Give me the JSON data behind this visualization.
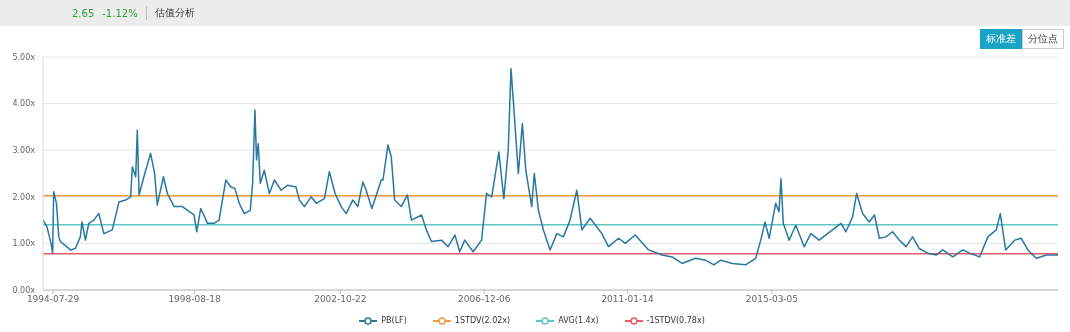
{
  "chart_data": {
    "type": "line",
    "title": "估值分析",
    "annotations": [
      "2.65",
      "-1.12%",
      "标准差",
      "分位点"
    ],
    "x": [
      "1994-04-15",
      "1994-05-26",
      "1994-07-08",
      "1994-07-25",
      "1994-08-05",
      "1994-09-03",
      "1994-09-27",
      "1994-10-14",
      "1995-01-28",
      "1995-03-19",
      "1995-05-11",
      "1995-05-28",
      "1995-07-03",
      "1995-08-07",
      "1995-09-29",
      "1995-11-20",
      "1996-01-12",
      "1996-04-09",
      "1996-06-18",
      "1996-08-27",
      "1996-10-18",
      "1996-11-05",
      "1996-12-10",
      "1996-12-27",
      "1997-01-14",
      "1997-03-06",
      "1997-05-15",
      "1997-06-26",
      "1997-07-24",
      "1997-09-26",
      "1997-11-07",
      "1998-01-16",
      "1998-04-12",
      "1998-08-13",
      "1998-09-10",
      "1998-10-22",
      "1999-01-01",
      "1999-03-10",
      "1999-05-02",
      "1999-07-11",
      "1999-09-03",
      "1999-10-14",
      "1999-11-29",
      "2000-01-21",
      "2000-03-23",
      "2000-04-17",
      "2000-05-11",
      "2000-05-28",
      "2000-06-15",
      "2000-07-06",
      "2000-08-17",
      "2000-10-09",
      "2000-12-01",
      "2001-02-10",
      "2001-04-19",
      "2001-07-15",
      "2001-08-19",
      "2001-10-11",
      "2001-12-20",
      "2002-02-12",
      "2002-05-08",
      "2002-06-29",
      "2002-08-28",
      "2002-10-30",
      "2002-12-22",
      "2003-03-01",
      "2003-04-23",
      "2003-06-14",
      "2003-07-19",
      "2003-09-17",
      "2003-11-19",
      "2003-12-24",
      "2004-01-11",
      "2004-03-03",
      "2004-04-07",
      "2004-05-12",
      "2004-07-21",
      "2004-09-23",
      "2004-11-04",
      "2005-02-18",
      "2005-04-09",
      "2005-06-01",
      "2005-09-15",
      "2005-11-23",
      "2006-02-02",
      "2006-03-24",
      "2006-05-16",
      "2006-08-12",
      "2006-11-08",
      "2006-12-30",
      "2007-02-22",
      "2007-05-08",
      "2007-06-29",
      "2007-08-14",
      "2007-09-12",
      "2007-10-06",
      "2007-11-28",
      "2008-01-09",
      "2008-02-14",
      "2008-04-16",
      "2008-05-13",
      "2008-06-25",
      "2008-08-16",
      "2008-10-25",
      "2009-01-04",
      "2009-03-13",
      "2009-05-22",
      "2009-08-01",
      "2009-09-23",
      "2009-12-19",
      "2010-04-20",
      "2010-06-28",
      "2010-10-12",
      "2010-12-21",
      "2011-04-04",
      "2011-08-22",
      "2012-01-10",
      "2012-04-24",
      "2012-08-07",
      "2012-12-25",
      "2013-04-09",
      "2013-07-05",
      "2013-09-14",
      "2014-01-15",
      "2014-06-02",
      "2014-09-16",
      "2014-11-08",
      "2014-12-23",
      "2015-02-04",
      "2015-04-13",
      "2015-05-18",
      "2015-06-08",
      "2015-07-02",
      "2015-09-01",
      "2015-11-10",
      "2016-02-06",
      "2016-04-15",
      "2016-07-11",
      "2016-10-07",
      "2017-02-25",
      "2017-04-17",
      "2017-06-26",
      "2017-08-07",
      "2017-10-09",
      "2017-12-18",
      "2018-02-10",
      "2018-04-02",
      "2018-06-10",
      "2018-08-19",
      "2018-10-28",
      "2019-01-07",
      "2019-03-16",
      "2019-05-25",
      "2019-08-21",
      "2019-11-17",
      "2020-01-26",
      "2020-05-10",
      "2020-08-23",
      "2020-11-02",
      "2021-02-15",
      "2021-05-12",
      "2021-08-08",
      "2021-09-19",
      "2021-11-14",
      "2022-02-17",
      "2022-04-26",
      "2022-07-05",
      "2022-10-01",
      "2023-01-15",
      "2023-05-16"
    ],
    "series": [
      {
        "name": "PB(LF)",
        "color": "#2878a0",
        "values": [
          1.5,
          1.36,
          1.0,
          0.79,
          2.11,
          1.86,
          1.14,
          1.04,
          0.86,
          0.89,
          1.14,
          1.46,
          1.07,
          1.43,
          1.5,
          1.64,
          1.21,
          1.29,
          1.89,
          1.93,
          2.0,
          2.64,
          2.43,
          3.43,
          2.04,
          2.43,
          2.93,
          2.5,
          1.82,
          2.43,
          2.07,
          1.79,
          1.79,
          1.61,
          1.25,
          1.75,
          1.43,
          1.43,
          1.5,
          2.36,
          2.21,
          2.18,
          1.86,
          1.64,
          1.71,
          2.29,
          3.86,
          2.79,
          3.14,
          2.29,
          2.57,
          2.07,
          2.36,
          2.14,
          2.25,
          2.21,
          1.93,
          1.79,
          2.0,
          1.86,
          1.96,
          2.54,
          2.07,
          1.79,
          1.64,
          1.93,
          1.79,
          2.32,
          2.14,
          1.75,
          2.14,
          2.36,
          2.36,
          3.11,
          2.86,
          1.93,
          1.79,
          2.04,
          1.5,
          1.61,
          1.29,
          1.04,
          1.07,
          0.93,
          1.18,
          0.82,
          1.07,
          0.82,
          1.07,
          2.07,
          2.0,
          2.96,
          1.96,
          3.0,
          4.75,
          4.07,
          2.5,
          3.57,
          2.57,
          1.79,
          2.5,
          1.71,
          1.29,
          0.86,
          1.21,
          1.14,
          1.5,
          2.14,
          1.29,
          1.54,
          1.21,
          0.93,
          1.11,
          1.0,
          1.18,
          0.86,
          0.75,
          0.71,
          0.57,
          0.68,
          0.64,
          0.54,
          0.64,
          0.57,
          0.54,
          0.68,
          1.07,
          1.46,
          1.11,
          1.86,
          1.68,
          2.39,
          1.43,
          1.07,
          1.39,
          0.93,
          1.21,
          1.07,
          1.21,
          1.43,
          1.25,
          1.57,
          2.07,
          1.64,
          1.46,
          1.61,
          1.11,
          1.14,
          1.25,
          1.07,
          0.93,
          1.14,
          0.89,
          0.79,
          0.75,
          0.86,
          0.71,
          0.86,
          0.79,
          0.71,
          1.14,
          1.29,
          1.64,
          0.86,
          1.07,
          1.11,
          0.86,
          0.68,
          0.75,
          0.75
        ]
      }
    ],
    "ref_lines": [
      {
        "axis": "y",
        "value": 2.02,
        "label": "1STDV(2.02x)",
        "color": "#f39c3c"
      },
      {
        "axis": "y",
        "value": 1.4,
        "label": "AVG(1.4x)",
        "color": "#5ec4c4"
      },
      {
        "axis": "y",
        "value": 0.78,
        "label": "-1STDV(0.78x)",
        "color": "#ea5a64"
      }
    ],
    "xlim": [
      "1994-04-15",
      "2023-05-16"
    ],
    "xticks": [
      "1994-07-29",
      "1998-08-18",
      "2002-10-22",
      "2006-12-06",
      "2011-01-14",
      "2015-03-05"
    ],
    "ylim": [
      0,
      5
    ],
    "yticks": [
      {
        "value": 0,
        "label": "0.00x"
      },
      {
        "value": 1,
        "label": "1.00x"
      },
      {
        "value": 2,
        "label": "2.00x"
      },
      {
        "value": 3,
        "label": "3.00x"
      },
      {
        "value": 4,
        "label": "4.00x"
      },
      {
        "value": 5,
        "label": "5.00x"
      }
    ],
    "grid": "y",
    "legend": "bottom",
    "marker": "none",
    "line_style": "solid"
  }
}
